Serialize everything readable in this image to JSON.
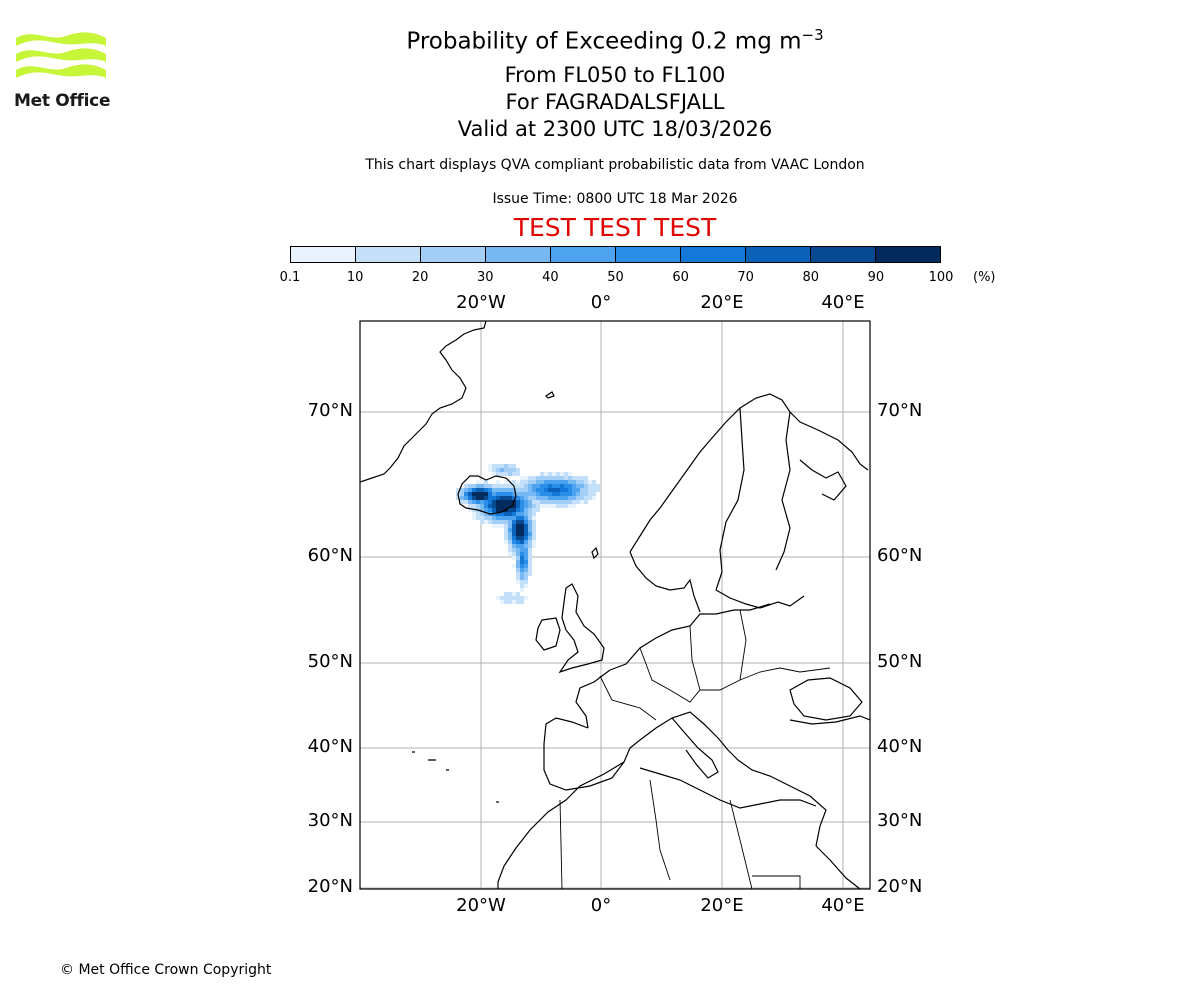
{
  "header": {
    "title_prefix": "Probability of Exceeding 0.2 mg m",
    "title_exponent": "−3",
    "flight_levels": "From FL050 to FL100",
    "volcano": "For FAGRADALSFJALL",
    "valid_time": "Valid at 2300 UTC 18/03/2026",
    "subtitle": "This chart displays QVA compliant probabilistic data from VAAC London",
    "issue_time": "Issue Time: 0800 UTC 18 Mar 2026",
    "test_banner": "TEST TEST TEST"
  },
  "logo": {
    "text": "Met Office",
    "color": "#c6f53a"
  },
  "colorbar": {
    "ticks": [
      "0.1",
      "10",
      "20",
      "30",
      "40",
      "50",
      "60",
      "70",
      "80",
      "90",
      "100"
    ],
    "unit": "(%)",
    "colors": [
      "#e9f3fd",
      "#c4e0f9",
      "#a3cff6",
      "#78b8f2",
      "#4ea3ef",
      "#2a8de8",
      "#1478d8",
      "#0b60b8",
      "#074a92",
      "#032a5c"
    ]
  },
  "map": {
    "lon_labels": [
      "20°W",
      "0°",
      "20°E",
      "40°E"
    ],
    "lat_labels": [
      "70°N",
      "60°N",
      "50°N",
      "40°N",
      "30°N",
      "20°N"
    ],
    "gridline_color": "#b0b0b0",
    "plume_highest_probability_at": "Iceland"
  },
  "footer": {
    "copyright": "© Met Office Crown Copyright"
  }
}
